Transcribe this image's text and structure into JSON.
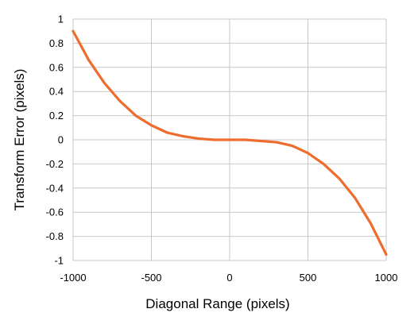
{
  "chart_data": {
    "type": "line",
    "title": "",
    "xlabel": "Diagonal Range (pixels)",
    "ylabel": "Transform Error (pixels)",
    "xlim": [
      -1000,
      1000
    ],
    "ylim": [
      -1,
      1
    ],
    "x_ticks": [
      "-1000",
      "-500",
      "0",
      "500",
      "1000"
    ],
    "y_ticks": [
      "1",
      "0.8",
      "0.6",
      "0.4",
      "0.2",
      "0",
      "-0.2",
      "-0.4",
      "-0.6",
      "-0.8",
      "-1"
    ],
    "grid": true,
    "series": [
      {
        "color": "#ED6C2E",
        "x": [
          -1000,
          -900,
          -800,
          -700,
          -600,
          -500,
          -400,
          -300,
          -200,
          -100,
          0,
          100,
          200,
          300,
          400,
          500,
          600,
          700,
          800,
          900,
          1000
        ],
        "y": [
          0.9,
          0.66,
          0.47,
          0.32,
          0.2,
          0.12,
          0.06,
          0.03,
          0.01,
          0.0,
          0.0,
          0.0,
          -0.01,
          -0.02,
          -0.05,
          -0.11,
          -0.2,
          -0.32,
          -0.48,
          -0.69,
          -0.95
        ]
      }
    ]
  }
}
